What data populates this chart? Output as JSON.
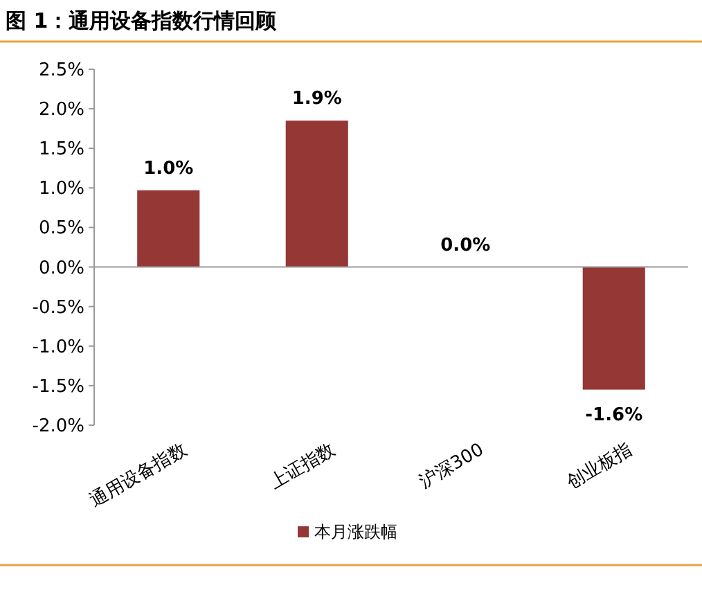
{
  "chart_data": {
    "type": "bar",
    "title": "图 1：通用设备指数行情回顾",
    "categories": [
      "通用设备指数",
      "上证指数",
      "沪深300",
      "创业板指"
    ],
    "series": [
      {
        "name": "本月涨跌幅",
        "color": "#953735",
        "values": [
          0.97,
          1.85,
          0,
          -1.55
        ],
        "value_labels": [
          "1.0%",
          "1.9%",
          "0.0%",
          "-1.6%"
        ]
      }
    ],
    "ylim": [
      -2.0,
      2.5
    ],
    "yticks": [
      {
        "value": 2.5,
        "label": "2.5%"
      },
      {
        "value": 2.0,
        "label": "2.0%"
      },
      {
        "value": 1.5,
        "label": "1.5%"
      },
      {
        "value": 1.0,
        "label": "1.0%"
      },
      {
        "value": 0.5,
        "label": "0.5%"
      },
      {
        "value": 0,
        "label": "0.0%"
      },
      {
        "value": -0.5,
        "label": "-0.5%"
      },
      {
        "value": -1.0,
        "label": "-1.0%"
      },
      {
        "value": -1.5,
        "label": "-1.5%"
      },
      {
        "value": -2.0,
        "label": "-2.0%"
      }
    ],
    "legend": "bottom"
  }
}
